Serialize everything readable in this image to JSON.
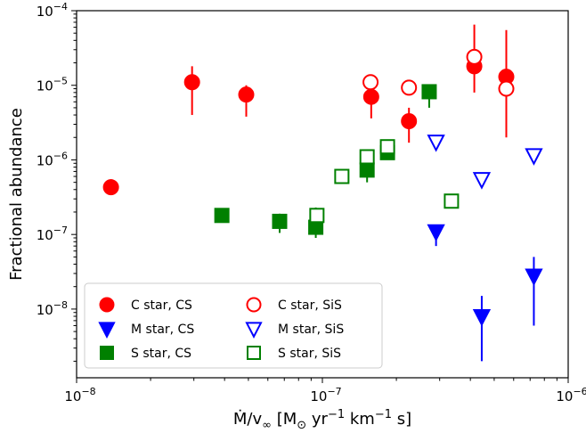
{
  "chart_data": {
    "type": "scatter",
    "title": "",
    "xlabel_parts": [
      "Ṁ/v",
      "∞",
      " [M",
      "⊙",
      " yr",
      "−1",
      " km",
      "−1",
      " s]"
    ],
    "ylabel": "Fractional abundance",
    "x_scale": "log",
    "y_scale": "log",
    "xlim": [
      1e-08,
      1e-06
    ],
    "ylim": [
      1.2e-09,
      0.0001
    ],
    "x_ticks": [
      {
        "value": 1e-08,
        "mant": "10",
        "exp": "−8"
      },
      {
        "value": 1e-07,
        "mant": "10",
        "exp": "−7"
      },
      {
        "value": 1e-06,
        "mant": "10",
        "exp": "−6"
      }
    ],
    "y_ticks": [
      {
        "value": 1e-08,
        "mant": "10",
        "exp": "−8"
      },
      {
        "value": 1e-07,
        "mant": "10",
        "exp": "−7"
      },
      {
        "value": 1e-06,
        "mant": "10",
        "exp": "−6"
      },
      {
        "value": 1e-05,
        "mant": "10",
        "exp": "−5"
      },
      {
        "value": 0.0001,
        "mant": "10",
        "exp": "−4"
      }
    ],
    "legend_position": "lower-left",
    "series": [
      {
        "name": "C star, CS",
        "color": "#ff0000",
        "marker": "circle",
        "filled": true,
        "points": [
          {
            "x": 1.38e-08,
            "y": 4.3e-07,
            "ylo": 3.5e-07,
            "yhi": 5.5e-07
          },
          {
            "x": 2.95e-08,
            "y": 1.1e-05,
            "ylo": 4e-06,
            "yhi": 1.8e-05
          },
          {
            "x": 4.9e-08,
            "y": 7.5e-06,
            "ylo": 3.8e-06,
            "yhi": 1e-05
          },
          {
            "x": 1.58e-07,
            "y": 7e-06,
            "ylo": 3.6e-06,
            "yhi": 1.3e-05
          },
          {
            "x": 2.25e-07,
            "y": 3.3e-06,
            "ylo": 1.7e-06,
            "yhi": 5e-06
          },
          {
            "x": 4.15e-07,
            "y": 1.8e-05,
            "ylo": 8e-06,
            "yhi": 6.5e-05
          },
          {
            "x": 5.6e-07,
            "y": 1.3e-05,
            "ylo": 2e-06,
            "yhi": 5.5e-05
          }
        ]
      },
      {
        "name": "M star, CS",
        "color": "#0000ff",
        "marker": "triangle-down",
        "filled": true,
        "points": [
          {
            "x": 2.9e-07,
            "y": 1.1e-07,
            "ylo": 7e-08,
            "yhi": 1.35e-07
          },
          {
            "x": 4.45e-07,
            "y": 8e-09,
            "ylo": 2e-09,
            "yhi": 1.5e-08
          },
          {
            "x": 7.25e-07,
            "y": 2.8e-08,
            "ylo": 6e-09,
            "yhi": 5e-08
          }
        ]
      },
      {
        "name": "S star, CS",
        "color": "#008000",
        "marker": "square",
        "filled": true,
        "points": [
          {
            "x": 3.9e-08,
            "y": 1.8e-07,
            "ylo": 1.6e-07,
            "yhi": 2e-07
          },
          {
            "x": 6.7e-08,
            "y": 1.5e-07,
            "ylo": 1.05e-07,
            "yhi": 1.9e-07
          },
          {
            "x": 9.4e-08,
            "y": 1.25e-07,
            "ylo": 9e-08,
            "yhi": 2.3e-07
          },
          {
            "x": 1.52e-07,
            "y": 7.3e-07,
            "ylo": 5e-07,
            "yhi": 1e-06
          },
          {
            "x": 1.84e-07,
            "y": 1.25e-06,
            "ylo": 1e-06,
            "yhi": 1.5e-06
          },
          {
            "x": 2.72e-07,
            "y": 8.2e-06,
            "ylo": 5e-06,
            "yhi": 1e-05
          }
        ]
      },
      {
        "name": "C star, SiS",
        "color": "#ff0000",
        "marker": "circle",
        "filled": false,
        "points": [
          {
            "x": 1.57e-07,
            "y": 1.1e-05
          },
          {
            "x": 2.25e-07,
            "y": 9.3e-06
          },
          {
            "x": 4.15e-07,
            "y": 2.4e-05
          },
          {
            "x": 5.6e-07,
            "y": 9e-06
          }
        ]
      },
      {
        "name": "M star, SiS",
        "color": "#0000ff",
        "marker": "triangle-down",
        "filled": false,
        "points": [
          {
            "x": 2.9e-07,
            "y": 1.75e-06
          },
          {
            "x": 4.45e-07,
            "y": 5.5e-07
          },
          {
            "x": 7.25e-07,
            "y": 1.15e-06
          }
        ]
      },
      {
        "name": "S star, SiS",
        "color": "#008000",
        "marker": "square",
        "filled": false,
        "points": [
          {
            "x": 9.5e-08,
            "y": 1.8e-07
          },
          {
            "x": 1.2e-07,
            "y": 6e-07
          },
          {
            "x": 1.52e-07,
            "y": 1.1e-06
          },
          {
            "x": 1.84e-07,
            "y": 1.5e-06
          },
          {
            "x": 3.35e-07,
            "y": 2.8e-07
          }
        ]
      }
    ]
  }
}
